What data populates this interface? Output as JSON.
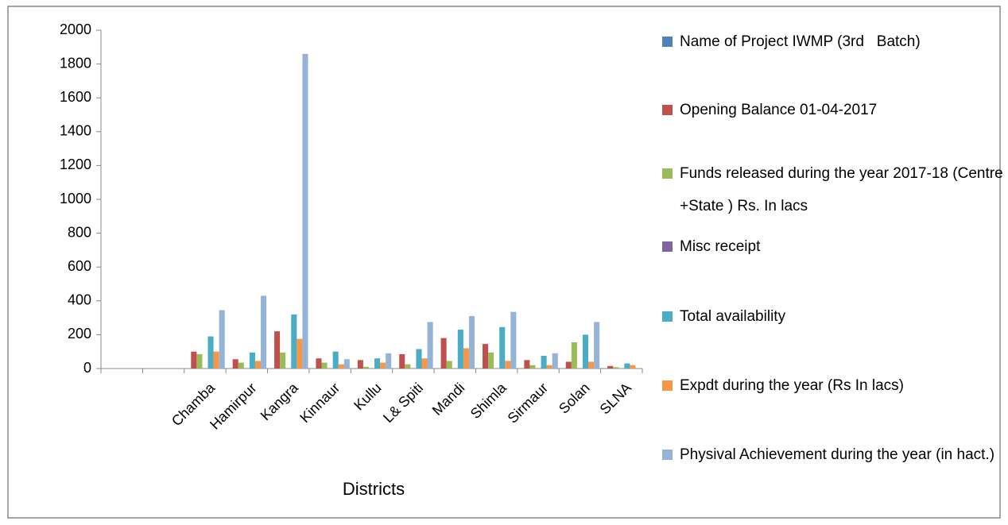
{
  "chart_data": {
    "type": "bar",
    "x_label": "Districts",
    "categories": [
      null,
      null,
      "Chamba",
      "Hamirpur",
      "Kangra",
      "Kinnaur",
      "Kullu",
      "L& Spiti",
      "Mandi",
      "Shimla",
      "Sirmaur",
      "Solan",
      "SLNA"
    ],
    "series": [
      {
        "name": "Name of Project IWMP (3rd   Batch)",
        "color": "#4f81bd",
        "values": [
          null,
          null,
          null,
          null,
          null,
          null,
          null,
          null,
          null,
          null,
          null,
          null,
          null
        ]
      },
      {
        "name": "Opening Balance 01-04-2017",
        "color": "#c0504d",
        "values": [
          null,
          null,
          100,
          55,
          220,
          60,
          50,
          85,
          180,
          145,
          50,
          40,
          15
        ]
      },
      {
        "name": "Funds released during the year 2017-18 (Centre +State ) Rs. In lacs",
        "color": "#9bbb59",
        "values": [
          null,
          null,
          85,
          35,
          95,
          35,
          10,
          25,
          45,
          95,
          20,
          155,
          8
        ]
      },
      {
        "name": "Misc receipt",
        "color": "#8064a2",
        "values": [
          null,
          null,
          null,
          null,
          null,
          null,
          null,
          null,
          null,
          null,
          null,
          null,
          null
        ]
      },
      {
        "name": "Total availability",
        "color": "#4bacc6",
        "values": [
          null,
          null,
          190,
          95,
          320,
          100,
          60,
          115,
          230,
          245,
          75,
          200,
          30
        ]
      },
      {
        "name": "Expdt during the year (Rs In lacs)",
        "color": "#f79646",
        "values": [
          null,
          null,
          100,
          45,
          175,
          25,
          35,
          60,
          120,
          45,
          20,
          40,
          20
        ]
      },
      {
        "name": "Physival Achievement during the year (in hact.)",
        "color": "#95b3d7",
        "values": [
          null,
          null,
          345,
          430,
          1860,
          55,
          90,
          275,
          310,
          335,
          90,
          275,
          null
        ]
      }
    ],
    "ylim": [
      0,
      2000
    ],
    "yticks": [
      0,
      200,
      400,
      600,
      800,
      1000,
      1200,
      1400,
      1600,
      1800,
      2000
    ],
    "legend": "right"
  }
}
